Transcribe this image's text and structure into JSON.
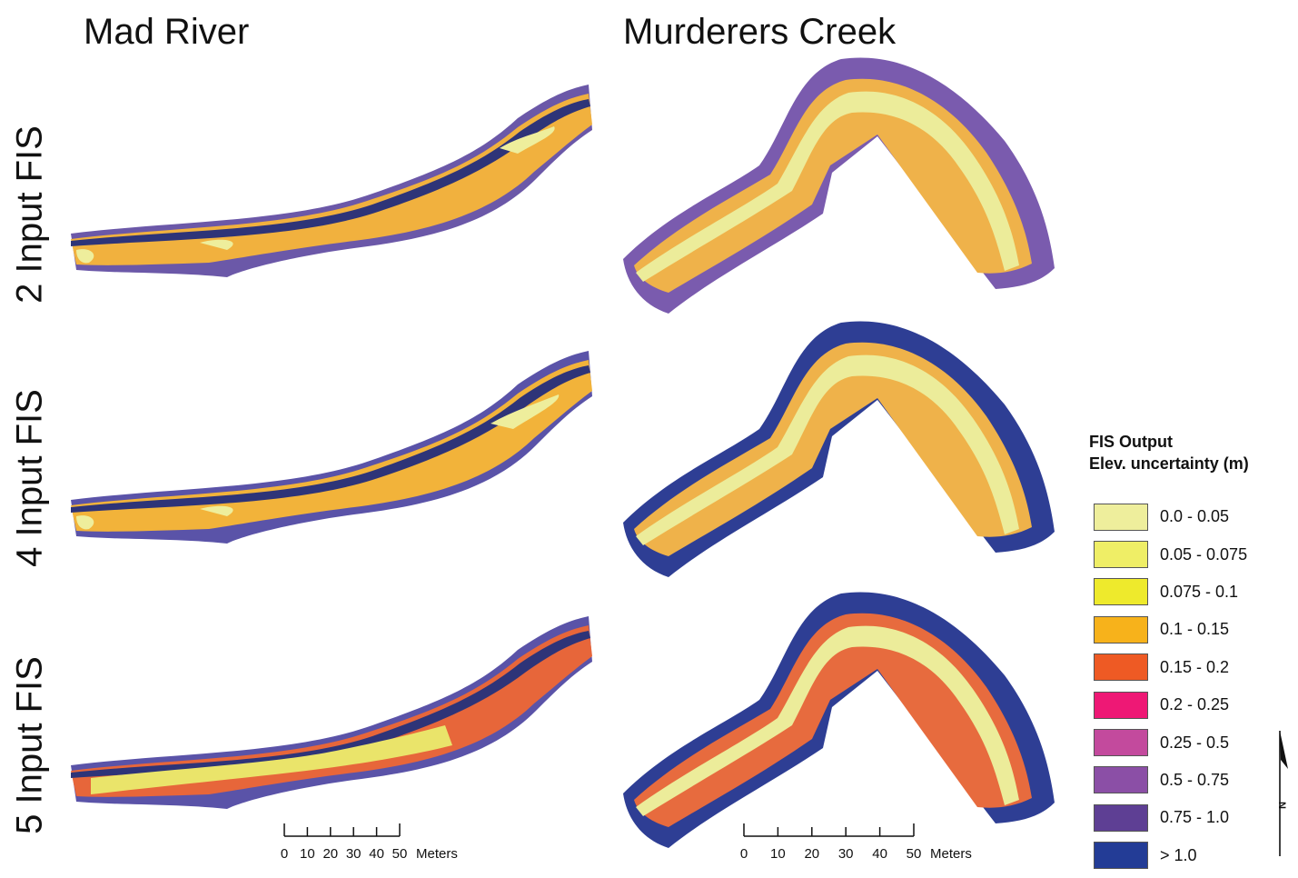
{
  "columns": [
    {
      "title": "Mad River"
    },
    {
      "title": "Murderers Creek"
    }
  ],
  "rows": [
    {
      "label": "2 Input FIS"
    },
    {
      "label": "4 Input FIS"
    },
    {
      "label": "5 Input FIS"
    }
  ],
  "legend": {
    "title_line1": "FIS Output",
    "title_line2": "Elev. uncertainty (m)",
    "classes": [
      {
        "label": "0.0 - 0.05",
        "color": "#EEEE9C"
      },
      {
        "label": "0.05 - 0.075",
        "color": "#EFEE66"
      },
      {
        "label": "0.075 - 0.1",
        "color": "#EEEA2C"
      },
      {
        "label": "0.1 - 0.15",
        "color": "#F7B21B"
      },
      {
        "label": "0.15 - 0.2",
        "color": "#EE5A24"
      },
      {
        "label": "0.2 - 0.25",
        "color": "#EE1875"
      },
      {
        "label": "0.25 - 0.5",
        "color": "#C34A9D"
      },
      {
        "label": "0.5 - 0.75",
        "color": "#8B4FA6"
      },
      {
        "label": "0.75 - 1.0",
        "color": "#5E3F94"
      },
      {
        "label": "> 1.0",
        "color": "#233C96"
      }
    ]
  },
  "scalebars": [
    {
      "ticks": [
        "0",
        "10",
        "20",
        "30",
        "40",
        "50"
      ],
      "unit": "Meters"
    },
    {
      "ticks": [
        "0",
        "10",
        "20",
        "30",
        "40",
        "50"
      ],
      "unit": "Meters"
    }
  ],
  "north_arrow": {
    "label": "N"
  }
}
